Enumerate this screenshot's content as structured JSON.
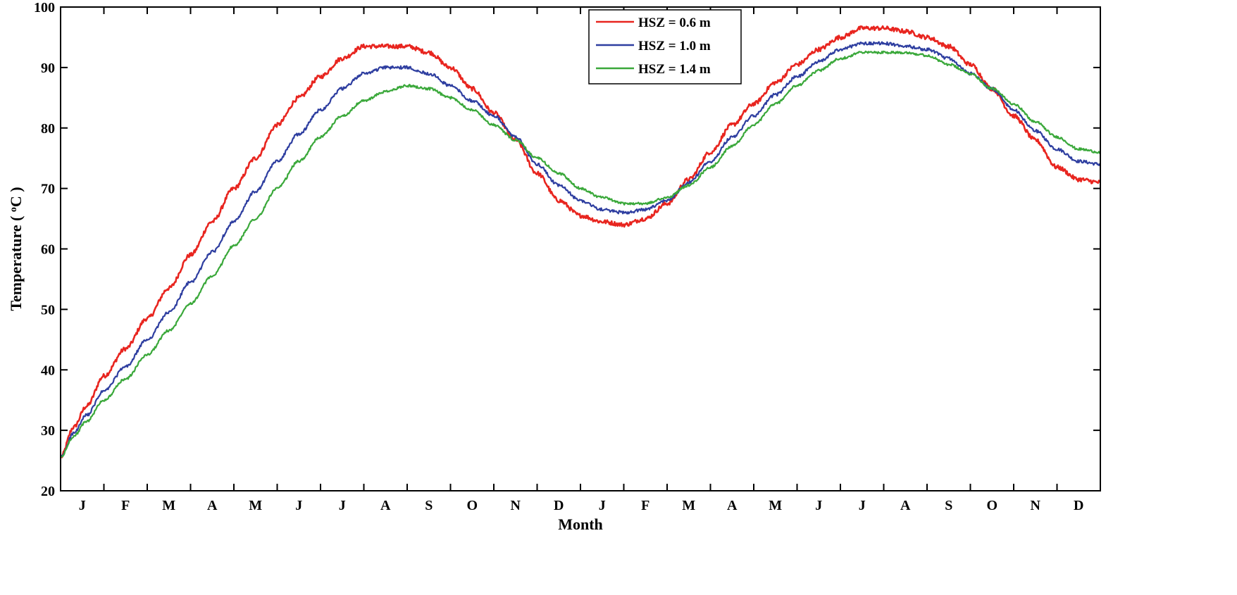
{
  "chart_data": {
    "type": "line",
    "title": "",
    "xlabel": "Month",
    "ylabel": "Temperature (°C)",
    "ylabel_parts": [
      "Temperature ( ",
      "o",
      "C )"
    ],
    "ylim": [
      20,
      100
    ],
    "yticks": [
      20,
      30,
      40,
      50,
      60,
      70,
      80,
      90,
      100
    ],
    "xlim": [
      0,
      24
    ],
    "x_unit": "months from start of first January",
    "month_labels": [
      "J",
      "F",
      "M",
      "A",
      "M",
      "J",
      "J",
      "A",
      "S",
      "O",
      "N",
      "D",
      "J",
      "F",
      "M",
      "A",
      "M",
      "J",
      "J",
      "A",
      "S",
      "O",
      "N",
      "D"
    ],
    "legend_position": "top-center",
    "series": [
      {
        "name": "HSZ = 0.6 m",
        "color": "#e8251f",
        "noise": 0.35,
        "x": [
          0,
          0.3,
          0.6,
          1,
          1.5,
          2,
          2.5,
          3,
          3.5,
          4,
          4.5,
          5,
          5.5,
          6,
          6.5,
          7,
          7.5,
          8,
          8.5,
          9,
          9.5,
          10,
          10.5,
          11,
          11.5,
          12,
          12.5,
          13,
          13.5,
          14,
          14.5,
          15,
          15.5,
          16,
          16.5,
          17,
          17.5,
          18,
          18.5,
          19,
          19.5,
          20,
          20.5,
          21,
          21.5,
          22,
          22.5,
          23,
          23.5,
          24
        ],
        "y": [
          25.5,
          30.5,
          34,
          39,
          43.5,
          48.5,
          53.5,
          59,
          64.5,
          70,
          75,
          80.5,
          85,
          88.5,
          91.5,
          93.5,
          93.5,
          93.5,
          92.5,
          90,
          86.5,
          82.5,
          78,
          72.5,
          68,
          65.5,
          64.5,
          64,
          65,
          67.5,
          71.5,
          76,
          80.5,
          84,
          87.5,
          90.5,
          93,
          95,
          96.5,
          96.5,
          96,
          95,
          93.5,
          90.5,
          86.5,
          82,
          78,
          73.5,
          71.5,
          71
        ]
      },
      {
        "name": "HSZ = 1.0 m",
        "color": "#2e3ea0",
        "noise": 0.25,
        "x": [
          0,
          0.3,
          0.6,
          1,
          1.5,
          2,
          2.5,
          3,
          3.5,
          4,
          4.5,
          5,
          5.5,
          6,
          6.5,
          7,
          7.5,
          8,
          8.5,
          9,
          9.5,
          10,
          10.5,
          11,
          11.5,
          12,
          12.5,
          13,
          13.5,
          14,
          14.5,
          15,
          15.5,
          16,
          16.5,
          17,
          17.5,
          18,
          18.5,
          19,
          19.5,
          20,
          20.5,
          21,
          21.5,
          22,
          22.5,
          23,
          23.5,
          24
        ],
        "y": [
          25.5,
          29.5,
          32.5,
          36.5,
          40.5,
          45,
          49.5,
          54.5,
          59.5,
          64.5,
          69.5,
          74.5,
          79,
          83,
          86.5,
          89,
          90,
          90,
          89,
          87,
          84.5,
          82,
          78.5,
          74,
          70.5,
          68,
          66.5,
          66,
          66.5,
          68,
          71,
          74.5,
          78.5,
          82,
          85.5,
          88.5,
          91,
          93,
          94,
          94,
          93.5,
          93,
          91.5,
          89,
          86.5,
          83,
          79.5,
          76.5,
          74.5,
          74
        ]
      },
      {
        "name": "HSZ = 1.4 m",
        "color": "#3aa83a",
        "noise": 0.2,
        "x": [
          0,
          0.3,
          0.6,
          1,
          1.5,
          2,
          2.5,
          3,
          3.5,
          4,
          4.5,
          5,
          5.5,
          6,
          6.5,
          7,
          7.5,
          8,
          8.5,
          9,
          9.5,
          10,
          10.5,
          11,
          11.5,
          12,
          12.5,
          13,
          13.5,
          14,
          14.5,
          15,
          15.5,
          16,
          16.5,
          17,
          17.5,
          18,
          18.5,
          19,
          19.5,
          20,
          20.5,
          21,
          21.5,
          22,
          22.5,
          23,
          23.5,
          24
        ],
        "y": [
          25.5,
          29,
          31.5,
          35,
          38.5,
          42.5,
          46.5,
          51,
          55.5,
          60.5,
          65,
          70,
          74.5,
          78.5,
          82,
          84.5,
          86,
          87,
          86.5,
          85,
          83,
          80.5,
          78,
          75,
          72.5,
          70,
          68.5,
          67.5,
          67.5,
          68.5,
          70.5,
          73.5,
          77,
          80.5,
          84,
          87,
          89.5,
          91.5,
          92.5,
          92.5,
          92.5,
          92,
          90.5,
          89,
          86.5,
          84,
          81,
          78.5,
          76.5,
          76
        ]
      }
    ]
  }
}
